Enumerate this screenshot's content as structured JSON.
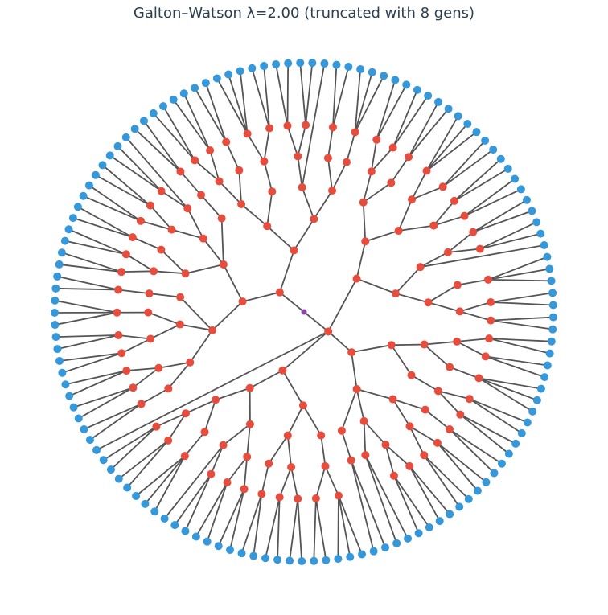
{
  "title": "Galton–Watson λ=2.00 (truncated with 8 gens)",
  "colors": {
    "root": "#8e44ad",
    "internal": "#e74c3c",
    "leaf": "#3498db",
    "edge": "#555555"
  },
  "tree": {
    "c": [
      {
        "c": [
          {
            "c": [
              {
                "c": [
                  {
                    "c": [
                      {
                        "c": [
                          {
                            "c": [
                              {},
                              {}
                            ]
                          },
                          {
                            "c": [
                              {},
                              {}
                            ]
                          }
                        ]
                      },
                      {
                        "c": [
                          {
                            "c": [
                              {},
                              {}
                            ]
                          }
                        ]
                      }
                    ]
                  },
                  {
                    "c": [
                      {
                        "c": [
                          {
                            "c": [
                              {},
                              {},
                              {}
                            ]
                          },
                          {
                            "c": [
                              {},
                              {}
                            ]
                          }
                        ]
                      },
                      {
                        "c": [
                          {
                            "c": [
                              {},
                              {}
                            ]
                          },
                          {
                            "c": [
                              {},
                              {}
                            ]
                          }
                        ]
                      }
                    ]
                  }
                ]
              },
              {
                "c": [
                  {
                    "c": [
                      {
                        "c": [
                          {
                            "c": [
                              {},
                              {}
                            ]
                          },
                          {
                            "c": [
                              {},
                              {}
                            ]
                          }
                        ]
                      },
                      {}
                    ]
                  },
                  {
                    "c": [
                      {
                        "c": [
                          {
                            "c": [
                              {},
                              {},
                              {}
                            ]
                          }
                        ]
                      },
                      {
                        "c": [
                          {
                            "c": [
                              {},
                              {}
                            ]
                          },
                          {
                            "c": [
                              {},
                              {}
                            ]
                          }
                        ]
                      }
                    ]
                  }
                ]
              }
            ]
          },
          {
            "c": [
              {
                "c": [
                  {
                    "c": [
                      {
                        "c": [
                          {
                            "c": [
                              {},
                              {}
                            ]
                          },
                          {
                            "c": [
                              {},
                              {}
                            ]
                          }
                        ]
                      },
                      {
                        "c": [
                          {
                            "c": [
                              {},
                              {},
                              {}
                            ]
                          }
                        ]
                      }
                    ]
                  },
                  {
                    "c": [
                      {
                        "c": [
                          {
                            "c": [
                              {},
                              {}
                            ]
                          },
                          {
                            "c": [
                              {},
                              {}
                            ]
                          }
                        ]
                      }
                    ]
                  }
                ]
              },
              {
                "c": [
                  {
                    "c": [
                      {
                        "c": [
                          {
                            "c": [
                              {},
                              {}
                            ]
                          }
                        ]
                      },
                      {
                        "c": [
                          {
                            "c": [
                              {},
                              {}
                            ]
                          },
                          {
                            "c": [
                              {},
                              {}
                            ]
                          }
                        ]
                      }
                    ]
                  },
                  {
                    "c": [
                      {
                        "c": [
                          {
                            "c": [
                              {},
                              {}
                            ]
                          },
                          {
                            "c": [
                              {},
                              {}
                            ]
                          }
                        ]
                      },
                      {
                        "c": [
                          {},
                          {}
                        ]
                      }
                    ]
                  },
                  {
                    "c": [
                      {
                        "c": [
                          {},
                          {}
                        ]
                      }
                    ]
                  }
                ]
              }
            ]
          },
          {
            "c": [
              {
                "c": [
                  {
                    "c": [
                      {
                        "c": [
                          {
                            "c": [
                              {},
                              {},
                              {}
                            ]
                          },
                          {
                            "c": [
                              {},
                              {}
                            ]
                          }
                        ]
                      }
                    ]
                  },
                  {
                    "c": [
                      {
                        "c": [
                          {
                            "c": [
                              {},
                              {}
                            ]
                          },
                          {
                            "c": [
                              {},
                              {}
                            ]
                          }
                        ]
                      },
                      {
                        "c": [
                          {
                            "c": [
                              {},
                              {}
                            ]
                          }
                        ]
                      }
                    ]
                  }
                ]
              },
              {
                "c": [
                  {
                    "c": [
                      {
                        "c": [
                          {
                            "c": [
                              {},
                              {}
                            ]
                          },
                          {
                            "c": [
                              {},
                              {}
                            ]
                          }
                        ]
                      },
                      {
                        "c": [
                          {
                            "c": [
                              {},
                              {}
                            ]
                          },
                          {}
                        ]
                      }
                    ]
                  },
                  {
                    "c": [
                      {
                        "c": [
                          {
                            "c": [
                              {},
                              {},
                              {}
                            ]
                          }
                        ]
                      },
                      {
                        "c": [
                          {
                            "c": [
                              {},
                              {}
                            ]
                          },
                          {
                            "c": [
                              {},
                              {}
                            ]
                          }
                        ]
                      }
                    ]
                  }
                ]
              }
            ]
          },
          {}
        ]
      },
      {
        "c": [
          {
            "c": [
              {
                "c": [
                  {
                    "c": [
                      {
                        "c": [
                          {
                            "c": [
                              {},
                              {}
                            ]
                          }
                        ]
                      },
                      {
                        "c": [
                          {
                            "c": [
                              {},
                              {}
                            ]
                          },
                          {
                            "c": [
                              {},
                              {}
                            ]
                          }
                        ]
                      }
                    ]
                  },
                  {
                    "c": [
                      {
                        "c": [
                          {
                            "c": [
                              {},
                              {}
                            ]
                          },
                          {
                            "c": [
                              {},
                              {}
                            ]
                          }
                        ]
                      },
                      {
                        "c": [
                          {
                            "c": [
                              {},
                              {},
                              {}
                            ]
                          }
                        ]
                      }
                    ]
                  },
                  {
                    "c": [
                      {
                        "c": [
                          {
                            "c": [
                              {},
                              {}
                            ]
                          }
                        ]
                      }
                    ]
                  }
                ]
              },
              {
                "c": [
                  {
                    "c": [
                      {
                        "c": [
                          {
                            "c": [
                              {},
                              {}
                            ]
                          },
                          {
                            "c": [
                              {},
                              {}
                            ]
                          }
                        ]
                      },
                      {
                        "c": [
                          {
                            "c": [
                              {},
                              {}
                            ]
                          }
                        ]
                      }
                    ]
                  },
                  {
                    "c": [
                      {
                        "c": [
                          {
                            "c": [
                              {},
                              {}
                            ]
                          },
                          {
                            "c": [
                              {},
                              {}
                            ]
                          }
                        ]
                      },
                      {
                        "c": [
                          {
                            "c": [
                              {},
                              {}
                            ]
                          },
                          {}
                        ]
                      }
                    ]
                  },
                  {
                    "c": [
                      {
                        "c": [
                          {
                            "c": [
                              {},
                              {}
                            ]
                          }
                        ]
                      }
                    ]
                  }
                ]
              }
            ]
          },
          {
            "c": [
              {
                "c": [
                  {
                    "c": [
                      {
                        "c": [
                          {
                            "c": [
                              {},
                              {}
                            ]
                          },
                          {
                            "c": [
                              {},
                              {}
                            ]
                          }
                        ]
                      },
                      {
                        "c": [
                          {
                            "c": [
                              {},
                              {}
                            ]
                          }
                        ]
                      }
                    ]
                  },
                  {
                    "c": [
                      {
                        "c": [
                          {
                            "c": [
                              {},
                              {},
                              {}
                            ]
                          },
                          {
                            "c": [
                              {},
                              {}
                            ]
                          }
                        ]
                      }
                    ]
                  }
                ]
              },
              {
                "c": [
                  {
                    "c": [
                      {
                        "c": [
                          {
                            "c": [
                              {},
                              {}
                            ]
                          },
                          {
                            "c": [
                              {},
                              {}
                            ]
                          }
                        ]
                      },
                      {}
                    ]
                  },
                  {
                    "c": [
                      {
                        "c": [
                          {
                            "c": [
                              {},
                              {}
                            ]
                          }
                        ]
                      },
                      {
                        "c": [
                          {
                            "c": [
                              {},
                              {},
                              {}
                            ]
                          }
                        ]
                      }
                    ]
                  }
                ]
              }
            ]
          }
        ]
      }
    ]
  }
}
